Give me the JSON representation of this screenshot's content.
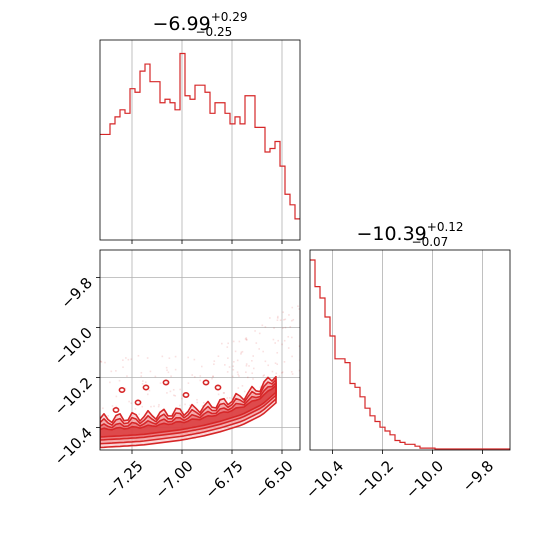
{
  "chart_data": [
    {
      "type": "histogram",
      "panel": "top-left marginal",
      "title": {
        "main": "−6.99",
        "sup": "+0.29",
        "sub": "−0.25"
      },
      "xlim": [
        -7.41,
        -6.41
      ],
      "ylim": [
        0,
        54
      ],
      "x_ticks": [
        -7.25,
        -7.0,
        -6.75,
        -6.5
      ],
      "grid": true,
      "color": "#d62728",
      "bins": {
        "edges_start": -7.41,
        "bin_width": 0.025,
        "counts": [
          30,
          30,
          33,
          35,
          37,
          36,
          43,
          42,
          48,
          50,
          45,
          45,
          39,
          40,
          39,
          37,
          53,
          41,
          40,
          44,
          44,
          42,
          36,
          39,
          39,
          36,
          33,
          35,
          33,
          41,
          41,
          32,
          32,
          25,
          26,
          28,
          21,
          13,
          10,
          6
        ]
      }
    },
    {
      "type": "histogram",
      "panel": "bottom-right marginal",
      "title": {
        "main": "−10.39",
        "sup": "+0.12",
        "sub": "−0.07"
      },
      "xlim": [
        -10.49,
        -9.69
      ],
      "ylim": [
        0,
        100
      ],
      "x_ticks": [
        -10.4,
        -10.2,
        -10.0,
        -9.8
      ],
      "x_tick_labels": [
        "−10.4",
        "−10.2",
        "−10.0",
        "−9.8"
      ],
      "grid": true,
      "color": "#d62728",
      "bins": {
        "edges_start": -10.49,
        "bin_width": 0.02,
        "counts": [
          100,
          86,
          80,
          70,
          60,
          48,
          48,
          46,
          35,
          33,
          28,
          22,
          18,
          15,
          12,
          10,
          8,
          5,
          4,
          3,
          3,
          2,
          1,
          1,
          1,
          0.5,
          0.5,
          0,
          0,
          0,
          0,
          0,
          0,
          0,
          0,
          0,
          0,
          0,
          0,
          0
        ]
      }
    },
    {
      "type": "contour",
      "panel": "bottom-left joint",
      "xlim": [
        -7.41,
        -6.41
      ],
      "ylim": [
        -10.49,
        -9.69
      ],
      "x_ticks": [
        -7.25,
        -7.0,
        -6.75,
        -6.5
      ],
      "x_tick_labels": [
        "−7.25",
        "−7.00",
        "−6.75",
        "−6.50"
      ],
      "y_ticks": [
        -9.8,
        -10.0,
        -10.2,
        -10.4
      ],
      "y_tick_labels": [
        "−9.8",
        "−10.0",
        "−10.2",
        "−10.4"
      ],
      "grid": true,
      "color": "#d62728",
      "trend": {
        "x": [
          -7.41,
          -7.3,
          -7.2,
          -7.1,
          -7.0,
          -6.9,
          -6.8,
          -6.7,
          -6.6,
          -6.5
        ],
        "y": [
          -10.42,
          -10.415,
          -10.41,
          -10.4,
          -10.39,
          -10.375,
          -10.355,
          -10.33,
          -10.29,
          -10.22
        ]
      },
      "levels": [
        0.118,
        0.393,
        0.675,
        0.865
      ]
    }
  ]
}
